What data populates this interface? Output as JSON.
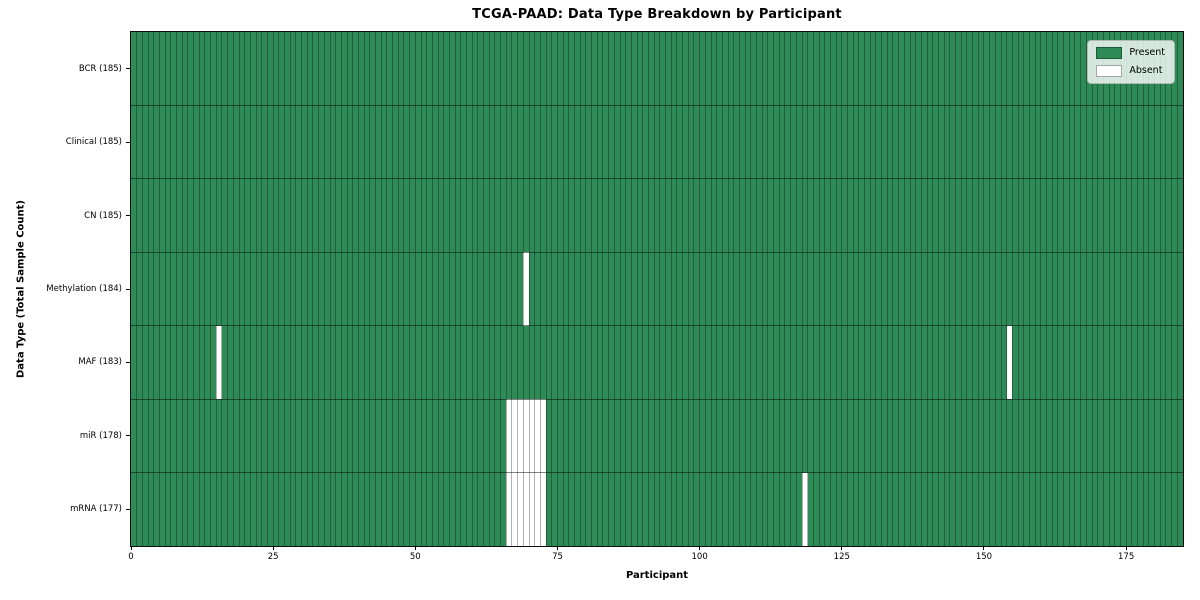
{
  "chart_data": {
    "type": "heatmap",
    "title": "TCGA-PAAD: Data Type Breakdown by Participant",
    "xlabel": "Participant",
    "ylabel": "Data Type (Total Sample Count)",
    "x_range": [
      0,
      185
    ],
    "x_ticks": [
      0,
      25,
      50,
      75,
      100,
      125,
      150,
      175
    ],
    "n_participants": 185,
    "grid": false,
    "legend": {
      "position": "upper right",
      "entries": [
        {
          "label": "Present",
          "color": "#2e8b57"
        },
        {
          "label": "Absent",
          "color": "#ffffff"
        }
      ]
    },
    "colors": {
      "present": "#2e8b57",
      "absent": "#ffffff",
      "bar_edge": "rgba(0,0,0,0.30)",
      "row_separator": "rgba(0,0,0,0.48)",
      "spine": "#0d0d0d"
    },
    "rows": [
      {
        "label": "BCR (185)",
        "data_type": "BCR",
        "total": 185,
        "absent_participants": []
      },
      {
        "label": "Clinical (185)",
        "data_type": "Clinical",
        "total": 185,
        "absent_participants": []
      },
      {
        "label": "CN (185)",
        "data_type": "CN",
        "total": 185,
        "absent_participants": []
      },
      {
        "label": "Methylation (184)",
        "data_type": "Methylation",
        "total": 184,
        "absent_participants": [
          69
        ]
      },
      {
        "label": "MAF (183)",
        "data_type": "MAF",
        "total": 183,
        "absent_participants": [
          15,
          154
        ]
      },
      {
        "label": "miR (178)",
        "data_type": "miR",
        "total": 178,
        "absent_participants": [
          66,
          67,
          68,
          69,
          70,
          71,
          72
        ]
      },
      {
        "label": "mRNA (177)",
        "data_type": "mRNA",
        "total": 177,
        "absent_participants": [
          66,
          67,
          68,
          69,
          70,
          71,
          72,
          118
        ]
      }
    ]
  }
}
